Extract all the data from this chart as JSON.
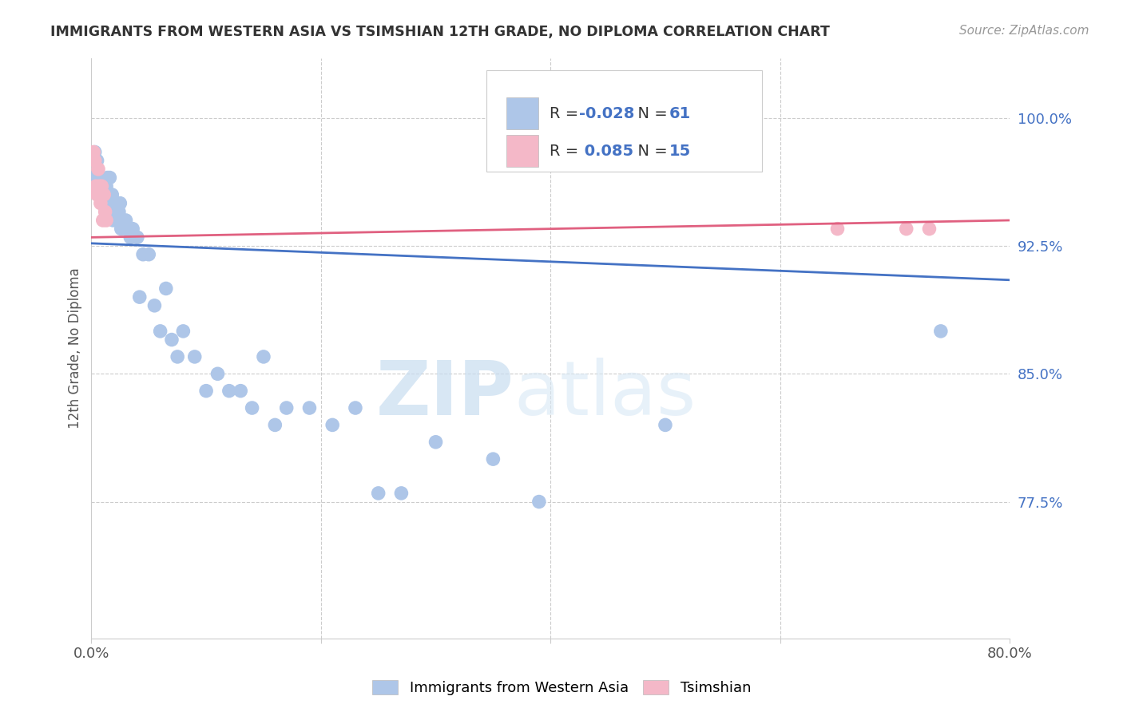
{
  "title": "IMMIGRANTS FROM WESTERN ASIA VS TSIMSHIAN 12TH GRADE, NO DIPLOMA CORRELATION CHART",
  "source": "Source: ZipAtlas.com",
  "ylabel": "12th Grade, No Diploma",
  "ytick_labels": [
    "100.0%",
    "92.5%",
    "85.0%",
    "77.5%"
  ],
  "ytick_values": [
    1.0,
    0.925,
    0.85,
    0.775
  ],
  "xlim": [
    0.0,
    0.8
  ],
  "ylim": [
    0.695,
    1.035
  ],
  "legend_r_blue": "-0.028",
  "legend_n_blue": "61",
  "legend_r_pink": "0.085",
  "legend_n_pink": "15",
  "blue_color": "#aec6e8",
  "pink_color": "#f4b8c8",
  "trend_blue": "#4472c4",
  "trend_pink": "#e06080",
  "watermark_zip": "ZIP",
  "watermark_atlas": "atlas",
  "blue_scatter_x": [
    0.002,
    0.003,
    0.004,
    0.005,
    0.005,
    0.006,
    0.007,
    0.007,
    0.008,
    0.009,
    0.01,
    0.011,
    0.012,
    0.013,
    0.013,
    0.014,
    0.015,
    0.016,
    0.017,
    0.018,
    0.019,
    0.02,
    0.021,
    0.022,
    0.024,
    0.025,
    0.026,
    0.028,
    0.03,
    0.032,
    0.034,
    0.036,
    0.04,
    0.042,
    0.045,
    0.05,
    0.055,
    0.06,
    0.065,
    0.07,
    0.075,
    0.08,
    0.09,
    0.1,
    0.11,
    0.12,
    0.13,
    0.14,
    0.15,
    0.16,
    0.17,
    0.19,
    0.21,
    0.23,
    0.25,
    0.27,
    0.3,
    0.35,
    0.39,
    0.5,
    0.74
  ],
  "blue_scatter_y": [
    0.965,
    0.98,
    0.975,
    0.965,
    0.975,
    0.96,
    0.955,
    0.965,
    0.96,
    0.955,
    0.96,
    0.96,
    0.955,
    0.96,
    0.95,
    0.965,
    0.95,
    0.965,
    0.95,
    0.955,
    0.94,
    0.95,
    0.945,
    0.94,
    0.945,
    0.95,
    0.935,
    0.94,
    0.94,
    0.935,
    0.93,
    0.935,
    0.93,
    0.895,
    0.92,
    0.92,
    0.89,
    0.875,
    0.9,
    0.87,
    0.86,
    0.875,
    0.86,
    0.84,
    0.85,
    0.84,
    0.84,
    0.83,
    0.86,
    0.82,
    0.83,
    0.83,
    0.82,
    0.83,
    0.78,
    0.78,
    0.81,
    0.8,
    0.775,
    0.82,
    0.875
  ],
  "pink_scatter_x": [
    0.002,
    0.003,
    0.004,
    0.005,
    0.006,
    0.007,
    0.008,
    0.009,
    0.01,
    0.011,
    0.012,
    0.013,
    0.65,
    0.71,
    0.73
  ],
  "pink_scatter_y": [
    0.98,
    0.975,
    0.96,
    0.955,
    0.97,
    0.96,
    0.95,
    0.96,
    0.94,
    0.955,
    0.945,
    0.94,
    0.935,
    0.935,
    0.935
  ],
  "blue_trend_x": [
    0.0,
    0.8
  ],
  "blue_trend_y": [
    0.9265,
    0.905
  ],
  "pink_trend_x": [
    0.0,
    0.8
  ],
  "pink_trend_y": [
    0.93,
    0.94
  ]
}
